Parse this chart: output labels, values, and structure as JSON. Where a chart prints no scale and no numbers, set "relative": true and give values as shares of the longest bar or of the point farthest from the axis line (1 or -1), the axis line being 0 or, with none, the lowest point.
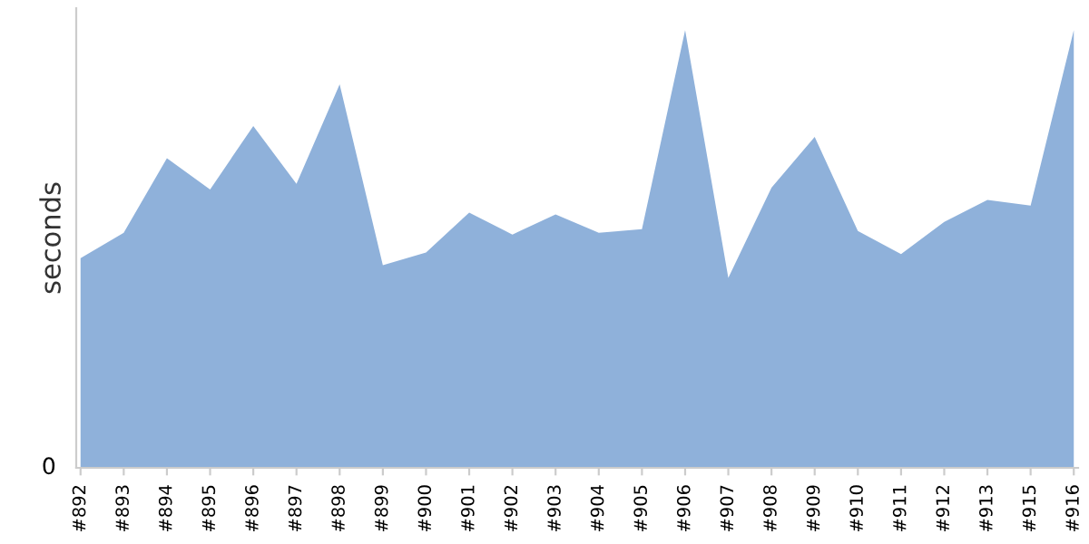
{
  "chart_data": {
    "type": "area",
    "ylabel": "seconds",
    "relative": true,
    "annotations": [
      "0"
    ],
    "categories": [
      "#892",
      "#893",
      "#894",
      "#895",
      "#896",
      "#897",
      "#898",
      "#899",
      "#900",
      "#901",
      "#902",
      "#903",
      "#904",
      "#905",
      "#906",
      "#907",
      "#908",
      "#909",
      "#910",
      "#911",
      "#912",
      "#913",
      "#915",
      "#916"
    ],
    "series": [
      {
        "color": "#8fb1da",
        "values": [
          0.479,
          0.537,
          0.707,
          0.636,
          0.781,
          0.649,
          0.876,
          0.463,
          0.492,
          0.583,
          0.533,
          0.579,
          0.537,
          0.545,
          1,
          0.434,
          0.64,
          0.756,
          0.541,
          0.488,
          0.562,
          0.612,
          0.599,
          1
        ]
      }
    ],
    "grid": false,
    "legend": false
  }
}
